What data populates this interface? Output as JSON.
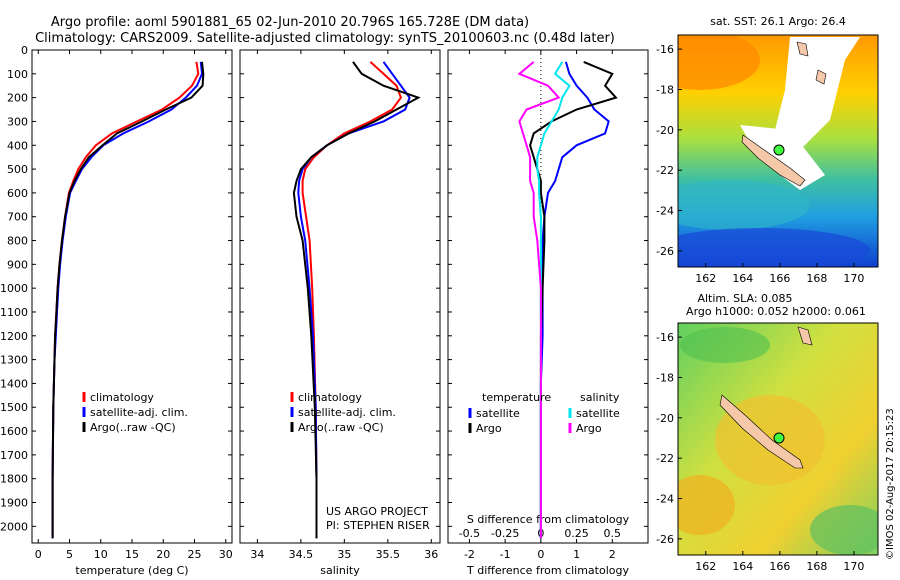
{
  "header": {
    "line1": "Argo profile: aoml 5901881_65 02-Jun-2010 20.796S 165.728E (DM data)",
    "line2": "Climatology: CARS2009. Satellite-adjusted climatology: synTS_20100603.nc (0.48d later)"
  },
  "credit": {
    "project": "US ARGO PROJECT",
    "pi": "PI: STEPHEN RISER",
    "stamp": "©IMOS 02-Aug-2017 20:15:23"
  },
  "colors": {
    "climatology": "#ff0000",
    "satellite": "#0000ff",
    "argo": "#000000",
    "argo_s": "#ff00ff",
    "sat_s": "#00e5ee",
    "land": "#f4c8a8"
  },
  "depth_ticks": [
    "0",
    "100",
    "200",
    "300",
    "400",
    "500",
    "600",
    "700",
    "800",
    "900",
    "1000",
    "1100",
    "1200",
    "1300",
    "1400",
    "1500",
    "1600",
    "1700",
    "1800",
    "1900",
    "2000"
  ],
  "chart_data": [
    {
      "type": "line",
      "id": "temperature",
      "xlabel": "temperature (deg C)",
      "ylabel": "",
      "xlim": [
        -1,
        31
      ],
      "ylim": [
        2070,
        0
      ],
      "xticks": [
        0,
        5,
        10,
        15,
        20,
        25,
        30
      ],
      "legend": [
        "climatology",
        "satellite-adj. clim.",
        "Argo(..raw -QC)"
      ],
      "legend_placement": "lower-middle",
      "series": [
        {
          "name": "climatology",
          "color": "#ff0000",
          "x": [
            25.3,
            25.6,
            24.6,
            22.6,
            19.8,
            15.8,
            11.8,
            9.2,
            7.6,
            6.4,
            5.6,
            4.9,
            4.3,
            3.8,
            3.4,
            3.1,
            2.9,
            2.7,
            2.6,
            2.5,
            2.4,
            2.3,
            2.3
          ],
          "y": [
            50,
            100,
            150,
            200,
            250,
            300,
            350,
            400,
            450,
            500,
            550,
            600,
            700,
            800,
            900,
            1000,
            1100,
            1200,
            1300,
            1400,
            1500,
            1800,
            2050
          ]
        },
        {
          "name": "satellite-adj. clim.",
          "color": "#0000ff",
          "x": [
            26.0,
            26.2,
            25.4,
            23.6,
            21.3,
            17.7,
            13.6,
            10.4,
            8.5,
            7.0,
            6.0,
            5.1,
            4.4,
            3.9,
            3.5,
            3.2,
            3.0,
            2.8,
            2.6,
            2.5,
            2.4,
            2.3,
            2.3
          ],
          "y": [
            50,
            100,
            150,
            200,
            250,
            300,
            350,
            400,
            450,
            500,
            550,
            600,
            700,
            800,
            900,
            1000,
            1100,
            1200,
            1300,
            1400,
            1500,
            1800,
            2050
          ]
        },
        {
          "name": "Argo(..raw -QC)",
          "color": "#000000",
          "x": [
            26.2,
            26.4,
            26.3,
            24.5,
            20.4,
            16.6,
            12.6,
            10.3,
            8.1,
            6.8,
            5.8,
            5.0,
            4.3,
            3.8,
            3.4,
            3.1,
            2.9,
            2.7,
            2.6,
            2.5,
            2.4,
            2.3,
            2.3
          ],
          "y": [
            50,
            100,
            150,
            200,
            250,
            300,
            350,
            400,
            450,
            500,
            550,
            600,
            700,
            800,
            900,
            1000,
            1100,
            1200,
            1300,
            1400,
            1500,
            1800,
            2050
          ]
        }
      ]
    },
    {
      "type": "line",
      "id": "salinity",
      "xlabel": "salinity",
      "ylabel": "",
      "xlim": [
        33.8,
        36.1
      ],
      "ylim": [
        2070,
        0
      ],
      "xticks": [
        34,
        34.5,
        35,
        35.5,
        36
      ],
      "legend": [
        "climatology",
        "satellite-adj. clim.",
        "Argo(..raw -QC)"
      ],
      "legend_placement": "lower-middle",
      "series": [
        {
          "name": "climatology",
          "color": "#ff0000",
          "x": [
            35.3,
            35.45,
            35.6,
            35.65,
            35.55,
            35.3,
            35.0,
            34.8,
            34.65,
            34.55,
            34.52,
            34.52,
            34.56,
            34.6,
            34.63,
            34.65,
            34.67,
            34.68,
            34.68
          ],
          "y": [
            50,
            100,
            150,
            200,
            250,
            300,
            350,
            400,
            450,
            500,
            550,
            600,
            700,
            800,
            1000,
            1200,
            1500,
            1800,
            2050
          ]
        },
        {
          "name": "satellite-adj. clim.",
          "color": "#0000ff",
          "x": [
            35.45,
            35.55,
            35.65,
            35.75,
            35.7,
            35.45,
            35.05,
            34.8,
            34.62,
            34.52,
            34.48,
            34.47,
            34.5,
            34.55,
            34.6,
            34.64,
            34.67,
            34.68,
            34.68
          ],
          "y": [
            50,
            100,
            150,
            200,
            250,
            300,
            350,
            400,
            450,
            500,
            550,
            600,
            700,
            800,
            1000,
            1200,
            1500,
            1800,
            2050
          ]
        },
        {
          "name": "Argo(..raw -QC)",
          "color": "#000000",
          "x": [
            35.1,
            35.2,
            35.45,
            35.85,
            35.6,
            35.35,
            35.05,
            34.8,
            34.62,
            34.5,
            34.45,
            34.42,
            34.45,
            34.52,
            34.58,
            34.62,
            34.66,
            34.68,
            34.68
          ],
          "y": [
            50,
            100,
            150,
            200,
            250,
            300,
            350,
            400,
            450,
            500,
            550,
            600,
            700,
            800,
            1000,
            1200,
            1500,
            1800,
            2050
          ]
        }
      ]
    },
    {
      "type": "line",
      "id": "difference",
      "xlabel": "T difference from climatology",
      "xlabel2": "S difference from climatology",
      "xlim": [
        -2.6,
        3.0
      ],
      "ylim": [
        2070,
        0
      ],
      "xticks": [
        -2,
        -1,
        0,
        1,
        2
      ],
      "s_ticks": [
        "-0.5",
        "-0.25",
        "0",
        "0.25",
        "0.5"
      ],
      "s_tick_x": [
        -2,
        -1,
        0,
        1,
        2
      ],
      "legend_t_title": "temperature",
      "legend_s_title": "salinity",
      "legend": [
        "satellite",
        "Argo",
        "satellite",
        "Argo"
      ],
      "legend_placement": "lower-middle",
      "series": [
        {
          "name": "satellite",
          "color": "#0000ff",
          "x": [
            0.7,
            0.8,
            1.0,
            1.3,
            1.5,
            1.9,
            1.8,
            1.0,
            0.6,
            0.5,
            0.4,
            0.2,
            0.1,
            0.05,
            0.05,
            0.05,
            0.0,
            0.0,
            0.0,
            0.0
          ],
          "y": [
            50,
            100,
            150,
            200,
            250,
            300,
            350,
            400,
            450,
            500,
            550,
            600,
            700,
            800,
            1000,
            1200,
            1400,
            1600,
            1800,
            2050
          ]
        },
        {
          "name": "Argo",
          "color": "#000000",
          "x": [
            1.2,
            2.0,
            1.8,
            2.1,
            1.0,
            0.3,
            -0.2,
            -0.3,
            -0.2,
            -0.1,
            0.0,
            0.0,
            0.1,
            0.1,
            0.05,
            0.0,
            0.0,
            0.0,
            0.0,
            0.0
          ],
          "y": [
            50,
            100,
            150,
            200,
            250,
            300,
            350,
            400,
            450,
            500,
            550,
            600,
            700,
            800,
            1000,
            1200,
            1400,
            1600,
            1800,
            2050
          ]
        },
        {
          "name": "satellite",
          "color": "#00e5ee",
          "x": [
            0.6,
            0.4,
            0.8,
            0.6,
            0.5,
            0.3,
            0.1,
            0.0,
            -0.1,
            -0.1,
            -0.05,
            -0.05,
            0.0,
            0.0,
            0.0,
            0.0,
            0.0,
            0.0,
            0.0,
            0.0
          ],
          "y": [
            50,
            100,
            150,
            200,
            250,
            300,
            350,
            400,
            450,
            500,
            550,
            600,
            700,
            800,
            1000,
            1200,
            1400,
            1600,
            1800,
            2050
          ]
        },
        {
          "name": "Argo",
          "color": "#ff00ff",
          "x": [
            -0.2,
            -0.6,
            0.2,
            0.5,
            -0.4,
            -0.6,
            -0.5,
            -0.4,
            -0.3,
            -0.3,
            -0.3,
            -0.2,
            -0.2,
            -0.1,
            0.0,
            0.0,
            0.0,
            0.0,
            0.0,
            0.0
          ],
          "y": [
            50,
            100,
            150,
            200,
            250,
            300,
            350,
            400,
            450,
            500,
            550,
            600,
            700,
            800,
            1000,
            1200,
            1400,
            1600,
            1800,
            2050
          ]
        }
      ]
    },
    {
      "type": "heatmap",
      "id": "sst_map",
      "title": "sat. SST: 26.1  Argo: 26.4",
      "x_ticks": [
        "162",
        "164",
        "166",
        "168",
        "170"
      ],
      "y_ticks": [
        "-16",
        "-18",
        "-20",
        "-22",
        "-24",
        "-26"
      ],
      "marker": [
        165.728,
        -20.796
      ]
    },
    {
      "type": "heatmap",
      "id": "sla_map",
      "title": "Altim. SLA: 0.085",
      "subtitle": "Argo h1000: 0.052  h2000: 0.061",
      "x_ticks": [
        "162",
        "164",
        "166",
        "168",
        "170"
      ],
      "y_ticks": [
        "-16",
        "-18",
        "-20",
        "-22",
        "-24",
        "-26"
      ],
      "marker": [
        165.728,
        -20.796
      ]
    }
  ]
}
